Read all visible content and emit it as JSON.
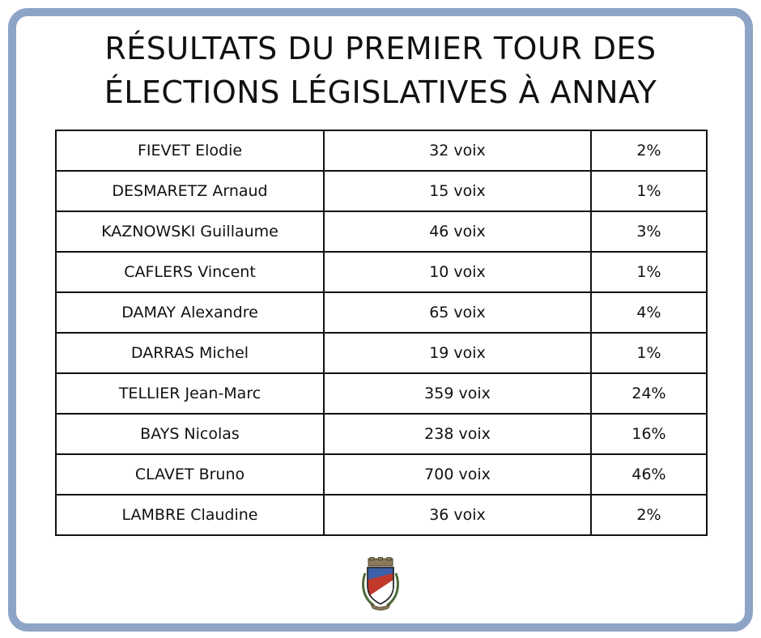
{
  "title": {
    "line1": "RÉSULTATS DU PREMIER TOUR DES",
    "line2": "ÉLECTIONS LÉGISLATIVES À ANNAY"
  },
  "results": [
    {
      "candidate": "FIEVET Elodie",
      "votes": "32 voix",
      "percent": "2%"
    },
    {
      "candidate": "DESMARETZ Arnaud",
      "votes": "15 voix",
      "percent": "1%"
    },
    {
      "candidate": "KAZNOWSKI Guillaume",
      "votes": "46 voix",
      "percent": "3%"
    },
    {
      "candidate": "CAFLERS Vincent",
      "votes": "10 voix",
      "percent": "1%"
    },
    {
      "candidate": "DAMAY Alexandre",
      "votes": "65 voix",
      "percent": "4%"
    },
    {
      "candidate": "DARRAS Michel",
      "votes": "19 voix",
      "percent": "1%"
    },
    {
      "candidate": "TELLIER Jean-Marc",
      "votes": "359 voix",
      "percent": "24%"
    },
    {
      "candidate": "BAYS Nicolas",
      "votes": "238 voix",
      "percent": "16%"
    },
    {
      "candidate": "CLAVET Bruno",
      "votes": "700 voix",
      "percent": "46%"
    },
    {
      "candidate": "LAMBRE Claudine",
      "votes": "36 voix",
      "percent": "2%"
    }
  ],
  "colors": {
    "frame": "#8da4c6",
    "crest_blue": "#3b5fa8",
    "crest_red": "#c0392b"
  },
  "icons": {
    "crest": "annay-coat-of-arms-icon"
  }
}
